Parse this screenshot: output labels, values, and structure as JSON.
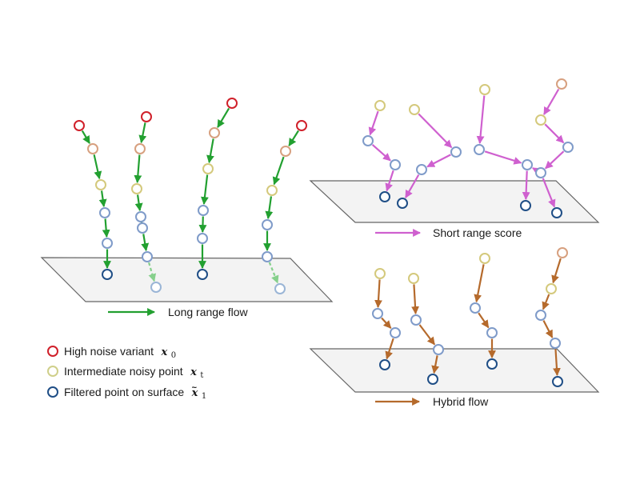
{
  "colors": {
    "high_noise": "#d0202a",
    "noisy_peach": "#d7a07f",
    "noisy_yellow": "#d4c97c",
    "intermediate": "#cfcf8a",
    "mid_blue": "#7f9bc9",
    "filtered": "#1f4e86",
    "faded_filtered": "#9ab5d6",
    "long_range": "#22a030",
    "long_range_faded": "#86d08c",
    "short_range": "#cf60cf",
    "hybrid": "#b56a2c",
    "plane_fill": "#f3f3f3",
    "plane_stroke": "#666666"
  },
  "panels": {
    "long_range": {
      "label": "Long range flow"
    },
    "short_range": {
      "label": "Short range score"
    },
    "hybrid": {
      "label": "Hybrid flow"
    }
  },
  "legend": [
    {
      "label": "High noise variant",
      "symbol": "x",
      "subscript": "0",
      "tilde": false,
      "color_key": "high_noise"
    },
    {
      "label": "Intermediate noisy point",
      "symbol": "x",
      "subscript": "t",
      "tilde": false,
      "color_key": "intermediate"
    },
    {
      "label": "Filtered point on surface",
      "symbol": "x",
      "subscript": "1",
      "tilde": true,
      "color_key": "filtered"
    }
  ]
}
